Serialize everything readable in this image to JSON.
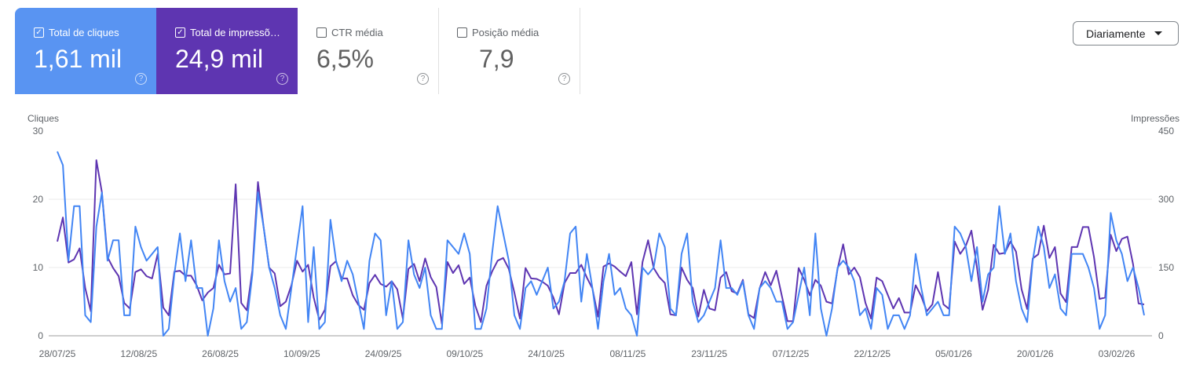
{
  "cards": [
    {
      "label": "Total de cliques",
      "value": "1,61 mil",
      "checked": true,
      "color": "#5994f2"
    },
    {
      "label": "Total de impressõ…",
      "value": "24,9 mil",
      "checked": true,
      "color": "#5e35b1"
    },
    {
      "label": "CTR média",
      "value": "6,5%",
      "checked": false
    },
    {
      "label": "Posição média",
      "value": "7,9",
      "checked": false
    }
  ],
  "check_glyph": "✓",
  "help_glyph": "?",
  "granularity": {
    "label": "Diariamente"
  },
  "chart_data": {
    "type": "line",
    "left_axis": {
      "label": "Cliques",
      "ticks": [
        "0",
        "10",
        "20",
        "30"
      ],
      "range": [
        0,
        30
      ]
    },
    "right_axis": {
      "label": "Impressões",
      "ticks": [
        "0",
        "150",
        "300",
        "450"
      ],
      "range": [
        0,
        450
      ]
    },
    "x_ticks": [
      "28/07/25",
      "12/08/25",
      "26/08/25",
      "10/09/25",
      "24/09/25",
      "09/10/25",
      "24/10/25",
      "08/11/25",
      "23/11/25",
      "07/12/25",
      "22/12/25",
      "05/01/26",
      "20/01/26",
      "03/02/26"
    ],
    "grid": true,
    "series": [
      {
        "name": "Cliques",
        "axis": "left",
        "color": "#4285f4",
        "values": [
          27,
          25,
          11,
          19,
          19,
          3,
          2,
          16,
          21,
          11,
          14,
          14,
          3,
          3,
          16,
          13,
          11,
          12,
          13,
          0,
          1,
          9,
          15,
          8,
          14,
          7,
          7,
          0,
          4,
          14,
          8,
          5,
          7,
          1,
          2,
          9,
          21,
          16,
          10,
          7,
          3,
          1,
          7,
          13,
          19,
          2,
          13,
          1,
          2,
          17,
          11,
          8,
          11,
          9,
          5,
          1,
          11,
          15,
          14,
          3,
          8,
          1,
          2,
          14,
          9,
          7,
          10,
          3,
          1,
          1,
          14,
          13,
          12,
          15,
          12,
          1,
          1,
          4,
          12,
          19,
          15,
          11,
          3,
          1,
          7,
          8,
          6,
          8,
          10,
          4,
          5,
          8,
          15,
          16,
          5,
          12,
          7,
          1,
          8,
          12,
          6,
          7,
          4,
          3,
          0,
          10,
          9,
          10,
          15,
          13,
          4,
          3,
          12,
          15,
          5,
          2,
          3,
          5,
          7,
          14,
          7,
          7,
          6,
          8,
          3,
          1,
          7,
          8,
          7,
          5,
          5,
          1,
          2,
          6,
          10,
          3,
          15,
          4,
          0,
          4,
          10,
          11,
          10,
          8,
          3,
          4,
          1,
          7,
          6,
          1,
          3,
          3,
          1,
          3,
          12,
          7,
          3,
          4,
          5,
          3,
          3,
          16,
          15,
          13,
          8,
          13,
          5,
          9,
          10,
          19,
          12,
          15,
          8,
          4,
          2,
          11,
          16,
          13,
          7,
          9,
          4,
          3,
          12,
          12,
          12,
          10,
          7,
          1,
          3,
          18,
          14,
          12,
          8,
          10,
          7,
          3
        ]
      },
      {
        "name": "Impressões",
        "axis": "right",
        "color": "#5e35b1",
        "values": [
          207,
          260,
          161,
          168,
          192,
          105,
          54,
          386,
          315,
          173,
          149,
          131,
          72,
          60,
          140,
          146,
          131,
          126,
          180,
          62,
          45,
          141,
          143,
          132,
          132,
          111,
          78,
          95,
          105,
          156,
          135,
          137,
          333,
          72,
          56,
          144,
          338,
          240,
          150,
          137,
          65,
          75,
          111,
          165,
          141,
          156,
          84,
          35,
          57,
          153,
          164,
          126,
          126,
          89,
          68,
          57,
          116,
          134,
          114,
          108,
          120,
          102,
          38,
          147,
          158,
          120,
          170,
          129,
          107,
          26,
          162,
          138,
          155,
          114,
          128,
          66,
          30,
          110,
          141,
          165,
          171,
          147,
          95,
          38,
          149,
          126,
          125,
          119,
          110,
          84,
          47,
          116,
          138,
          138,
          156,
          128,
          104,
          42,
          152,
          159,
          152,
          141,
          131,
          162,
          47,
          162,
          210,
          149,
          129,
          116,
          47,
          45,
          150,
          123,
          105,
          42,
          101,
          60,
          56,
          128,
          140,
          98,
          93,
          123,
          47,
          39,
          104,
          140,
          111,
          143,
          87,
          32,
          32,
          149,
          123,
          89,
          123,
          110,
          75,
          71,
          147,
          201,
          135,
          150,
          129,
          72,
          38,
          128,
          120,
          90,
          60,
          83,
          51,
          51,
          111,
          87,
          54,
          69,
          140,
          69,
          59,
          207,
          180,
          198,
          231,
          150,
          57,
          101,
          200,
          180,
          182,
          207,
          185,
          102,
          59,
          170,
          179,
          242,
          171,
          195,
          93,
          74,
          195,
          195,
          239,
          239,
          173,
          81,
          84,
          222,
          186,
          213,
          218,
          158,
          71,
          69
        ]
      }
    ]
  }
}
